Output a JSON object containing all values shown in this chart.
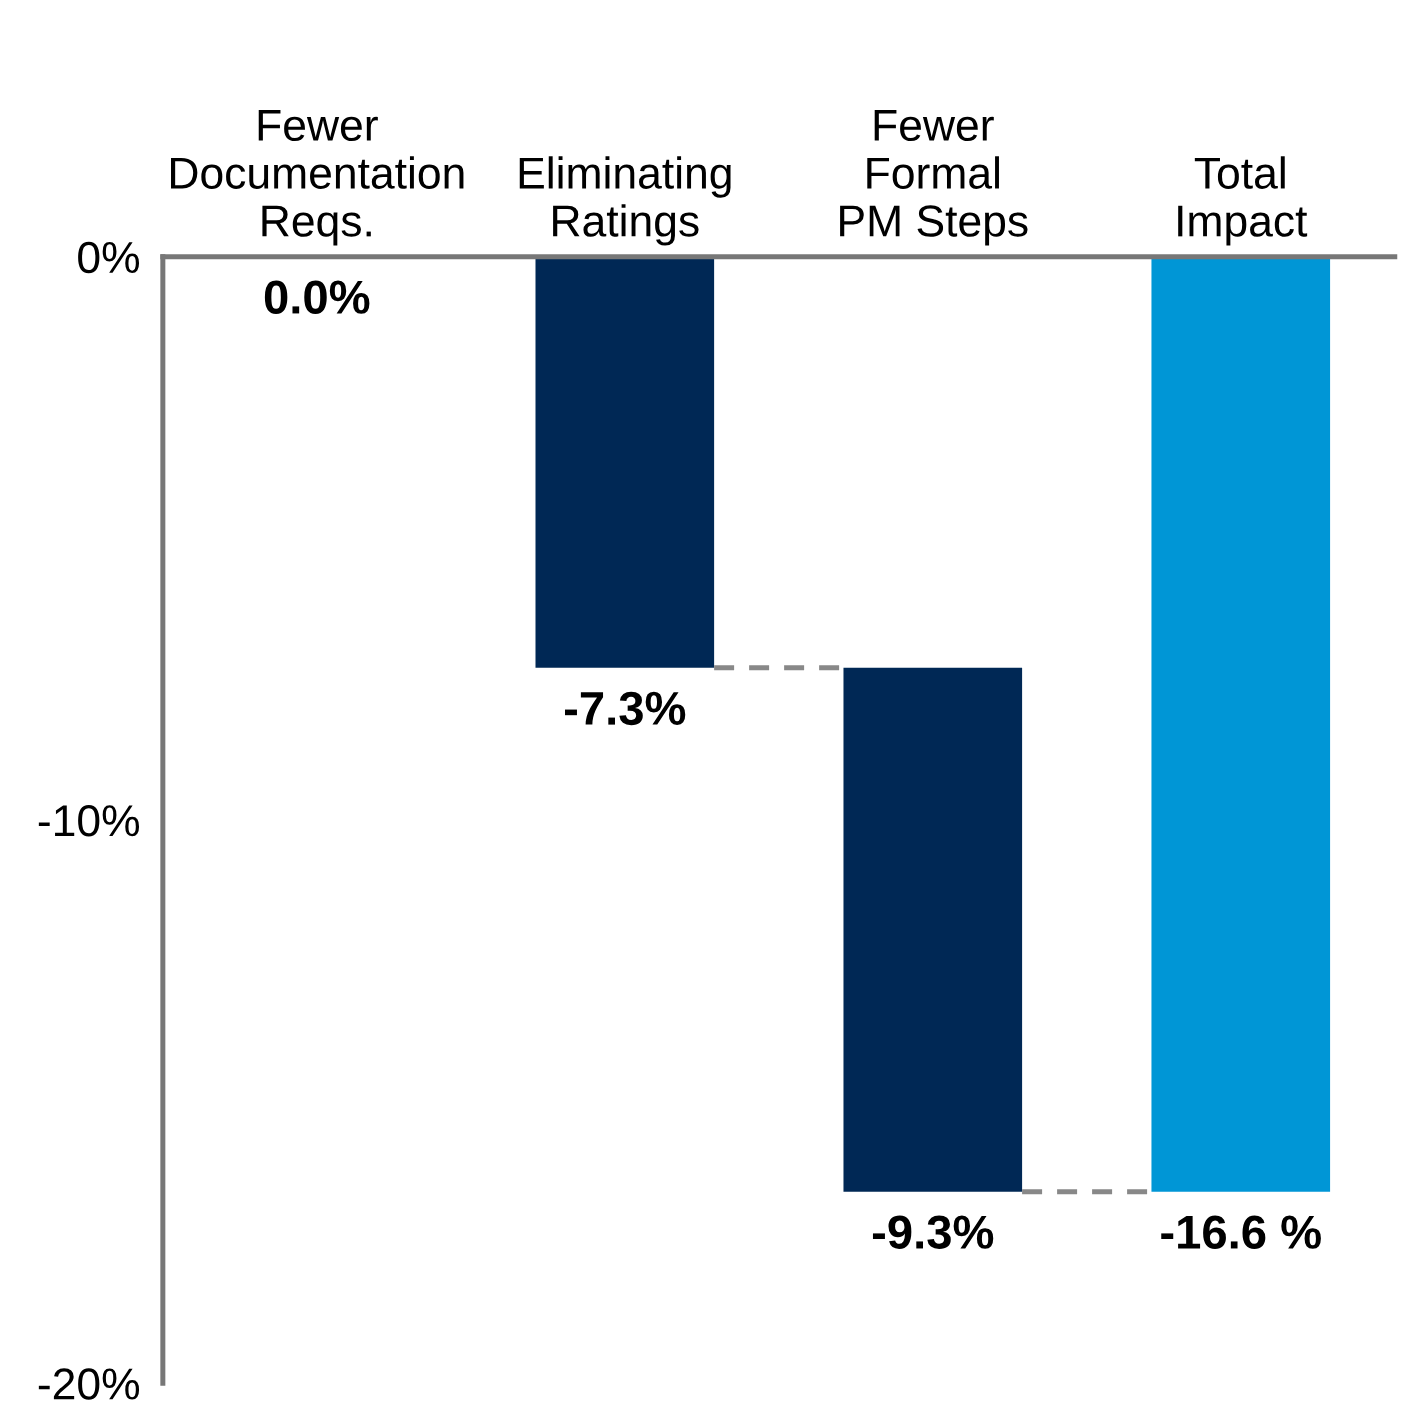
{
  "chart_data": {
    "type": "bar",
    "categories": [
      "Fewer\nDocumentation\nReqs.",
      "Eliminating\nRatings",
      "Fewer\nFormal\nPM Steps",
      "Total\nImpact"
    ],
    "values": [
      0.0,
      -7.3,
      -9.3,
      -16.6
    ],
    "base": [
      null,
      0,
      -7.3,
      0
    ],
    "colors": [
      "#002855",
      "#002855",
      "#002855",
      "#0096d6"
    ],
    "value_labels": [
      "0.0%",
      "-7.3%",
      "-9.3%",
      "-16.6 %"
    ],
    "ylim": [
      -20,
      0
    ],
    "yticks": [
      {
        "value": 0,
        "label": "0%"
      },
      {
        "value": -10,
        "label": "-10%"
      },
      {
        "value": -20,
        "label": "-20%"
      }
    ],
    "grid": false,
    "legend": false
  }
}
